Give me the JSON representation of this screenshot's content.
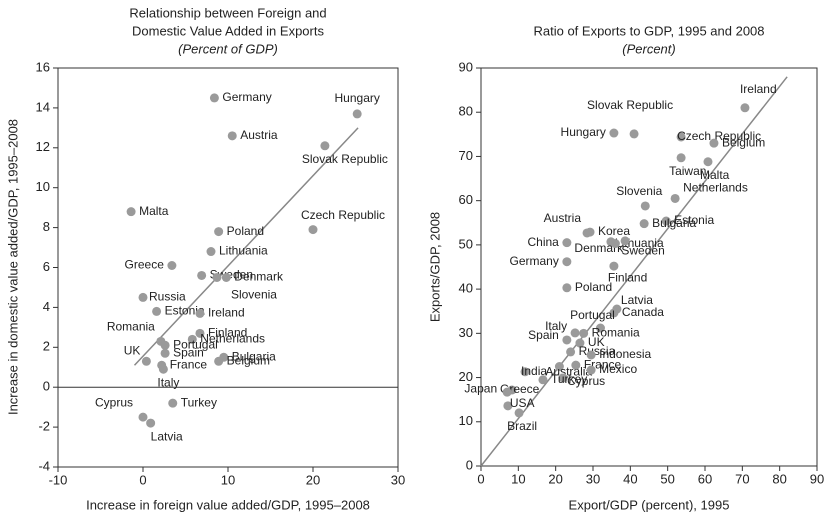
{
  "chart_data": [
    {
      "type": "scatter",
      "title": [
        "Relationship between Foreign and",
        "Domestic Value Added in Exports"
      ],
      "subtitle": "(Percent of GDP)",
      "x_label": "Increase in foreign  value added/GDP, 1995–2008",
      "y_label": "Increase in domestic value added/GDP, 1995–2008",
      "xlim": [
        -10,
        30
      ],
      "xticks": [
        -10,
        0,
        10,
        20,
        30
      ],
      "ylim": [
        -4,
        16
      ],
      "yticks": [
        -4,
        -2,
        0,
        2,
        4,
        6,
        8,
        10,
        12,
        14,
        16
      ],
      "color": "#9a9a9a",
      "labels": [
        "Germany",
        "Hungary",
        "Austria",
        "Slovak Republic",
        "Malta",
        "Poland",
        "Czech Republic",
        "Lithuania",
        "Greece",
        "Sweden",
        "Denmark",
        "Slovenia",
        "Russia",
        "Estonia",
        "Ireland",
        "Finland",
        "Netherlands",
        "Romania",
        "Portugal",
        "Spain",
        "UK",
        "Bulgaria",
        "Belgium",
        "France",
        "Italy",
        "Turkey",
        "Cyprus",
        "Latvia"
      ],
      "x": [
        8.4,
        25.2,
        10.5,
        21.4,
        -1.4,
        8.9,
        20,
        8,
        3.4,
        6.9,
        9.8,
        8.7,
        0,
        1.6,
        6.7,
        6.7,
        5.8,
        2.1,
        2.6,
        2.6,
        0.4,
        9.5,
        8.9,
        2.2,
        2.4,
        3.5,
        0,
        0.9
      ],
      "values": [
        14.5,
        13.7,
        12.6,
        12.1,
        8.8,
        7.8,
        7.9,
        6.8,
        6.1,
        5.6,
        5.5,
        5.5,
        4.5,
        3.8,
        3.7,
        2.7,
        2.4,
        2.3,
        2.1,
        1.7,
        1.3,
        1.5,
        1.3,
        1.1,
        0.9,
        -0.8,
        -1.5,
        -1.8
      ],
      "trend_line": {
        "x": [
          -1,
          25.3
        ],
        "y": [
          1.1,
          13
        ]
      }
    },
    {
      "type": "scatter",
      "title": [
        "Ratio of Exports to GDP, 1995 and 2008"
      ],
      "subtitle": "(Percent)",
      "x_label": "Export/GDP (percent), 1995",
      "y_label": "Exports/GDP, 2008",
      "xlim": [
        0,
        90
      ],
      "xticks": [
        0,
        10,
        20,
        30,
        40,
        50,
        60,
        70,
        80,
        90
      ],
      "ylim": [
        0,
        90
      ],
      "yticks": [
        0,
        10,
        20,
        30,
        40,
        50,
        60,
        70,
        80,
        90
      ],
      "color": "#9a9a9a",
      "labels": [
        "Ireland",
        "Slovak Republic",
        "Hungary",
        "Czech Republic",
        "Belgium",
        "Taiwan",
        "Malta",
        "Slovenia",
        "Netherlands",
        "Estonia",
        "Bulgaria",
        "Korea",
        "Austria",
        "Lithuania",
        "Denmark",
        "China",
        "Germany",
        "Sweden",
        "Finland",
        "Poland",
        "Latvia",
        "Canada",
        "Portugal",
        "Italy",
        "Romania",
        "UK",
        "Spain",
        "Russia",
        "Indonesia",
        "Australia",
        "France",
        "Mexico",
        "India",
        "Cyprus",
        "Turkey",
        "Greece",
        "Japan",
        "USA",
        "Brazil"
      ],
      "x": [
        70.7,
        41,
        35.6,
        53.6,
        62.4,
        53.6,
        60.8,
        44,
        52,
        49.6,
        43.7,
        29.2,
        28.4,
        34.8,
        38.6,
        23,
        23,
        36,
        35.6,
        23,
        36.4,
        35.6,
        32,
        25.2,
        27.5,
        26.5,
        23,
        24,
        29.5,
        21,
        25.4,
        29.5,
        11.8,
        22,
        16.6,
        8.3,
        7,
        7.2,
        10.2
      ],
      "values": [
        81,
        75.1,
        75.3,
        74.4,
        73,
        69.7,
        68.8,
        58.8,
        60.5,
        55.4,
        54.8,
        52.9,
        52.7,
        50.7,
        50.9,
        50.5,
        46.2,
        50.3,
        45.2,
        40.3,
        35.5,
        34.6,
        31.2,
        30.1,
        30,
        27.8,
        28.5,
        25.8,
        25.1,
        22.5,
        22.8,
        21.7,
        21.3,
        19.9,
        19.5,
        17.2,
        16.7,
        13.6,
        12
      ],
      "trend_line": {
        "x": [
          0,
          82
        ],
        "y": [
          0,
          88
        ]
      }
    }
  ]
}
